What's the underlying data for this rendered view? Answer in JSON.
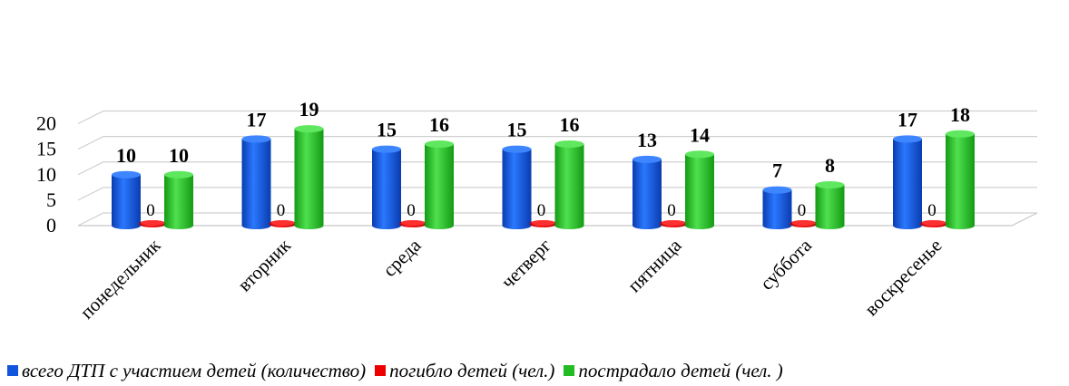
{
  "chart_data": {
    "type": "bar",
    "categories": [
      "понедельник",
      "вторник",
      "среда",
      "четверг",
      "пятница",
      "суббота",
      "воскресенье"
    ],
    "series": [
      {
        "name": "всего ДТП с участием детей (количество)",
        "color": "#1155dd",
        "values": [
          10,
          17,
          15,
          15,
          13,
          7,
          17
        ]
      },
      {
        "name": "погибло детей (чел.)",
        "color": "#ee0000",
        "values": [
          0,
          0,
          0,
          0,
          0,
          0,
          0
        ]
      },
      {
        "name": "пострадало детей (чел. )",
        "color": "#22bb22",
        "values": [
          10,
          19,
          16,
          16,
          14,
          8,
          18
        ]
      }
    ],
    "yticks": [
      0,
      5,
      10,
      15,
      20
    ],
    "ylim": [
      0,
      20
    ],
    "grid": true,
    "legend_position": "bottom"
  }
}
